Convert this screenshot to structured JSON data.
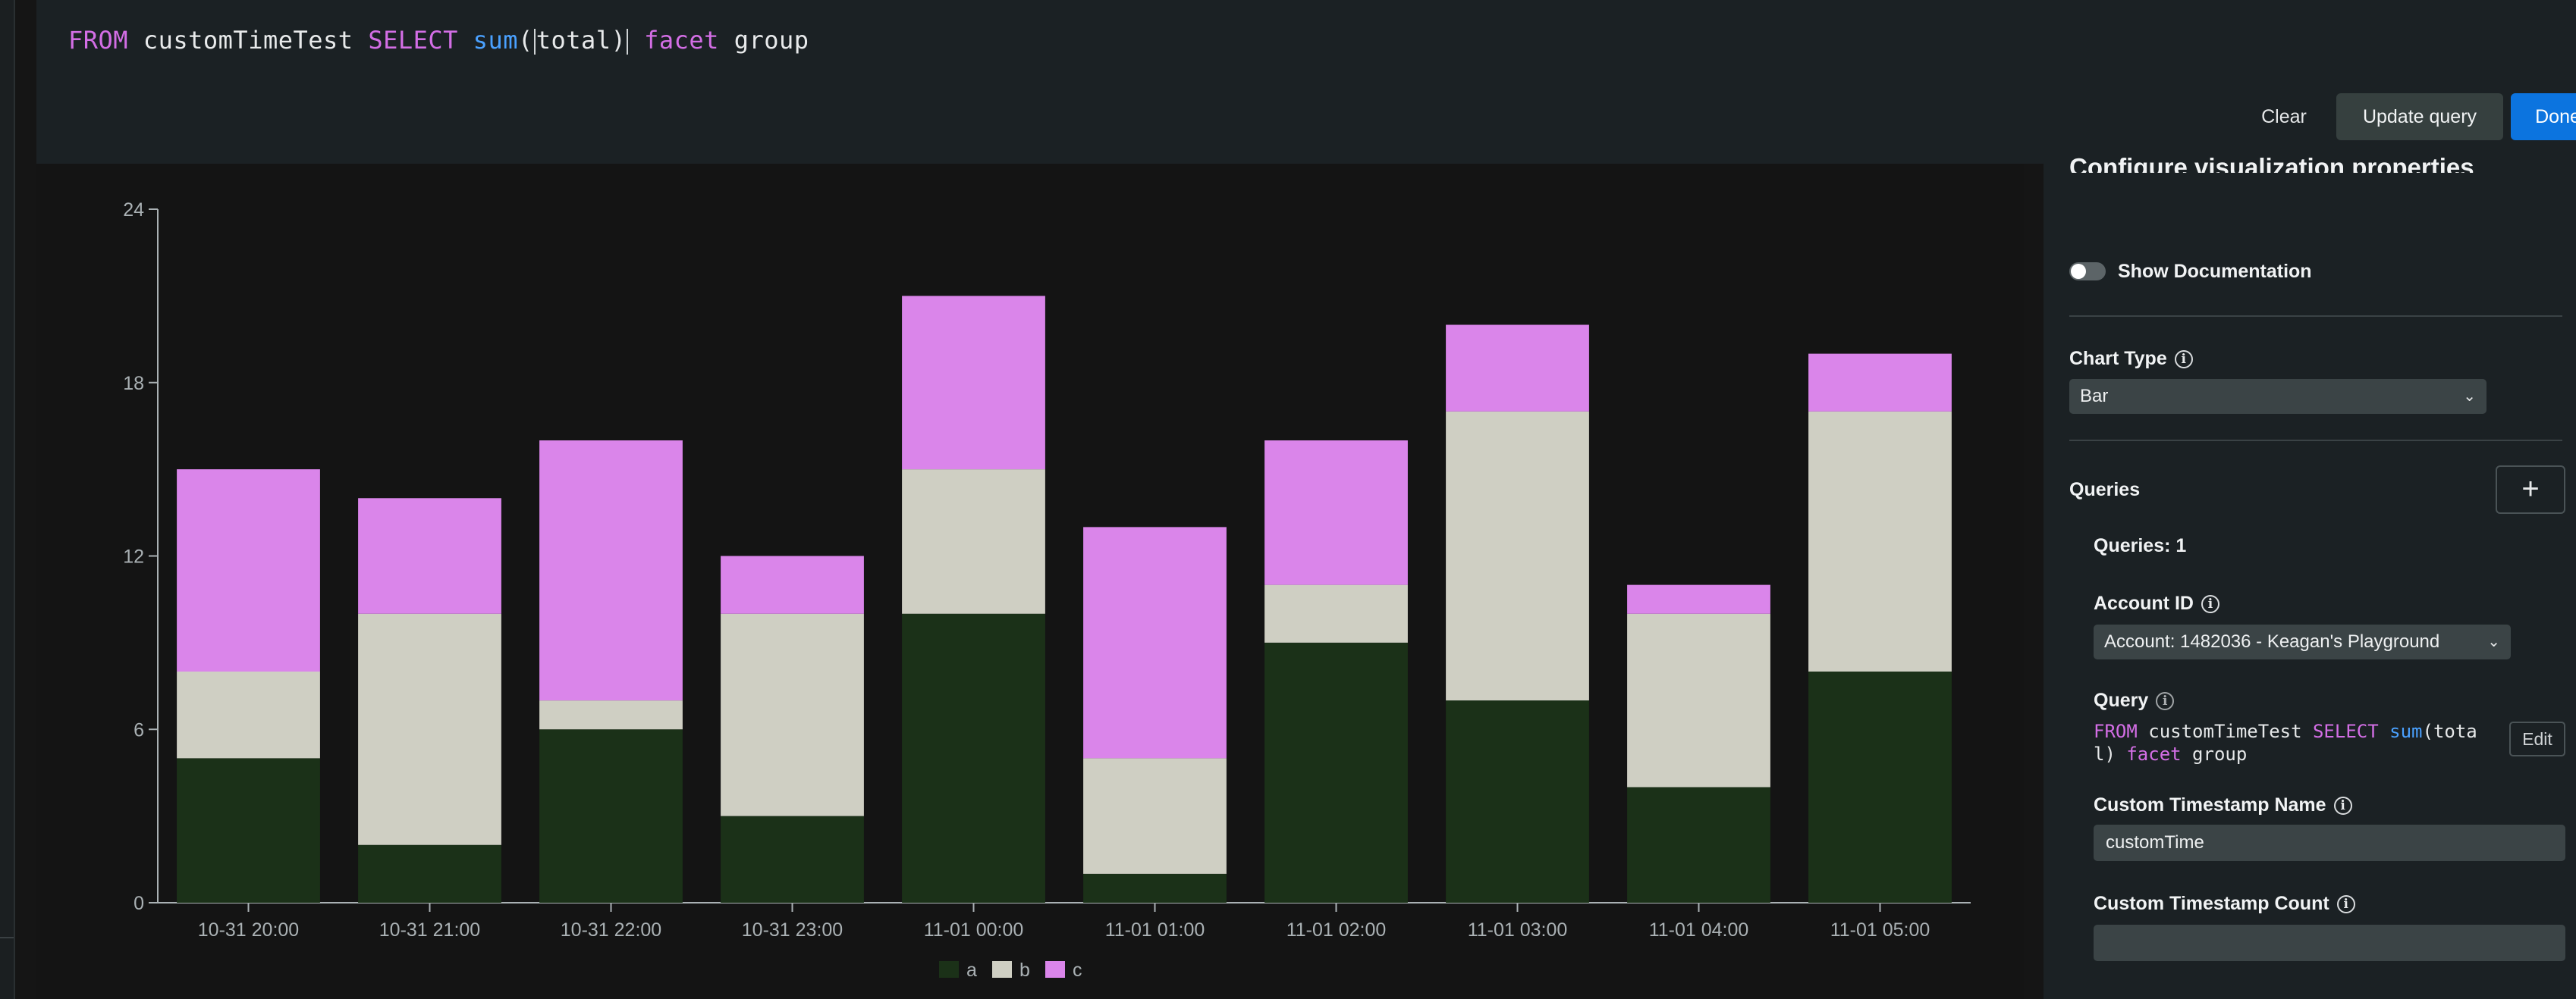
{
  "query_bar": {
    "tokens": [
      {
        "text": "FROM",
        "kind": "kw"
      },
      {
        "text": " customTimeTest ",
        "kind": "plain"
      },
      {
        "text": "SELECT",
        "kind": "kw"
      },
      {
        "text": " ",
        "kind": "plain"
      },
      {
        "text": "sum",
        "kind": "fn"
      },
      {
        "text": "(",
        "kind": "plain"
      },
      {
        "text": "total",
        "kind": "plain"
      },
      {
        "text": ")",
        "kind": "plain"
      },
      {
        "text": " ",
        "kind": "plain"
      },
      {
        "text": "facet",
        "kind": "kw"
      },
      {
        "text": " group",
        "kind": "plain"
      }
    ],
    "clear_label": "Clear",
    "update_label": "Update query",
    "done_label": "Done"
  },
  "colors": {
    "keyword": "#d36ee5",
    "function": "#4aa1ff",
    "series_a": "#1b3118",
    "series_b": "#cfcfc3",
    "series_c": "#da85ea",
    "primary_button": "#0c74df"
  },
  "chart_data": {
    "type": "bar",
    "stacked": true,
    "categories": [
      "10-31 20:00",
      "10-31 21:00",
      "10-31 22:00",
      "10-31 23:00",
      "11-01 00:00",
      "11-01 01:00",
      "11-01 02:00",
      "11-01 03:00",
      "11-01 04:00",
      "11-01 05:00"
    ],
    "series": [
      {
        "name": "a",
        "values": [
          5,
          2,
          6,
          3,
          10,
          1,
          9,
          7,
          4,
          8
        ]
      },
      {
        "name": "b",
        "values": [
          3,
          8,
          1,
          7,
          5,
          4,
          2,
          10,
          6,
          9
        ]
      },
      {
        "name": "c",
        "values": [
          7,
          4,
          9,
          2,
          6,
          8,
          5,
          3,
          1,
          2
        ]
      }
    ],
    "yticks": [
      "0",
      "6",
      "12",
      "18",
      "24"
    ],
    "ylim": [
      0,
      24
    ],
    "grid": false,
    "legend": "bottom-center"
  },
  "props": {
    "title": "Configure visualization properties",
    "show_doc_label": "Show Documentation",
    "chart_type_label": "Chart Type",
    "chart_type_value": "Bar",
    "queries_label": "Queries",
    "add_icon": "plus-icon",
    "queries_count": "Queries: 1",
    "account_label": "Account ID",
    "account_value": "Account: 1482036 - Keagan's Playground",
    "query_label": "Query",
    "query_line1": [
      {
        "text": "FROM",
        "kind": "kw"
      },
      {
        "text": " customTimeTest ",
        "kind": "plain"
      },
      {
        "text": "SELECT",
        "kind": "kw"
      },
      {
        "text": " ",
        "kind": "plain"
      },
      {
        "text": "sum",
        "kind": "fn"
      },
      {
        "text": "(tota",
        "kind": "plain"
      }
    ],
    "query_line2": [
      {
        "text": "l) ",
        "kind": "plain"
      },
      {
        "text": "facet",
        "kind": "kw"
      },
      {
        "text": " group",
        "kind": "plain"
      }
    ],
    "edit_label": "Edit",
    "custom_ts_name_label": "Custom Timestamp Name",
    "custom_ts_name_value": "customTime",
    "custom_ts_count_label": "Custom Timestamp Count",
    "custom_ts_count_value": ""
  }
}
